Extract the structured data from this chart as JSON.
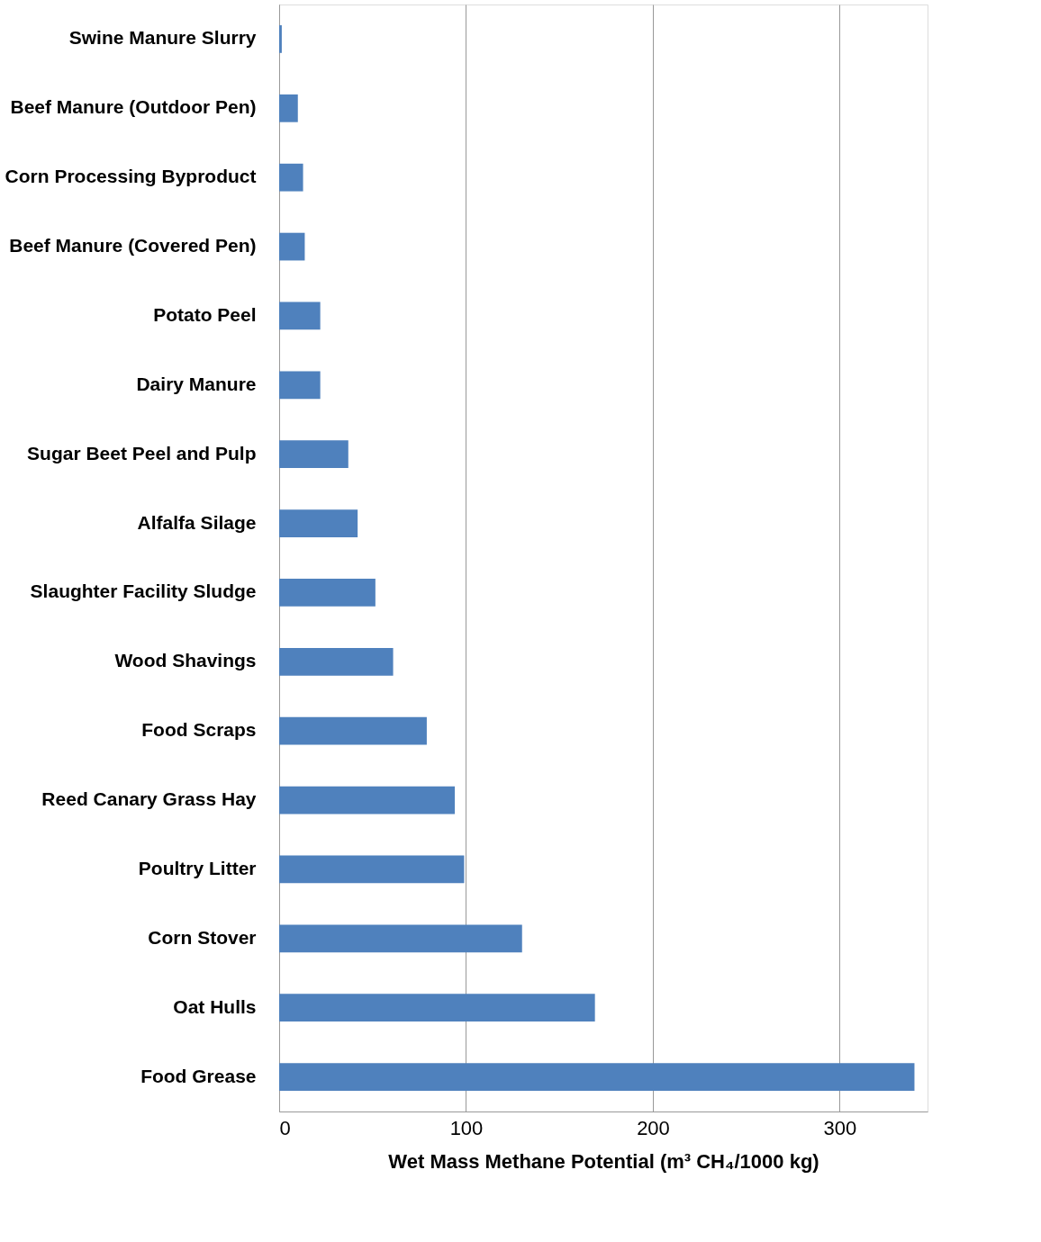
{
  "chart_data": {
    "type": "bar",
    "orientation": "horizontal",
    "xlabel": "Wet Mass Methane Potential (m³ CH₄/1000 kg)",
    "categories": [
      "Swine Manure Slurry",
      "Beef  Manure (Outdoor Pen)",
      "Corn Processing Byproduct",
      "Beef Manure (Covered Pen)",
      "Potato Peel",
      "Dairy Manure",
      "Sugar Beet Peel and Pulp",
      "Alfalfa Silage",
      "Slaughter Facility Sludge",
      "Wood Shavings",
      "Food Scraps",
      "Reed Canary Grass Hay",
      "Poultry Litter",
      "Corn Stover",
      "Oat Hulls",
      "Food Grease"
    ],
    "values": [
      1.4,
      10,
      12.8,
      13.7,
      22,
      22,
      37,
      42,
      51.5,
      61,
      79,
      94,
      99,
      130,
      169,
      340
    ],
    "color": "#4f81bd",
    "xlim": [
      0,
      347
    ],
    "xticks": [
      0,
      100,
      200,
      300
    ],
    "grid": "x"
  }
}
